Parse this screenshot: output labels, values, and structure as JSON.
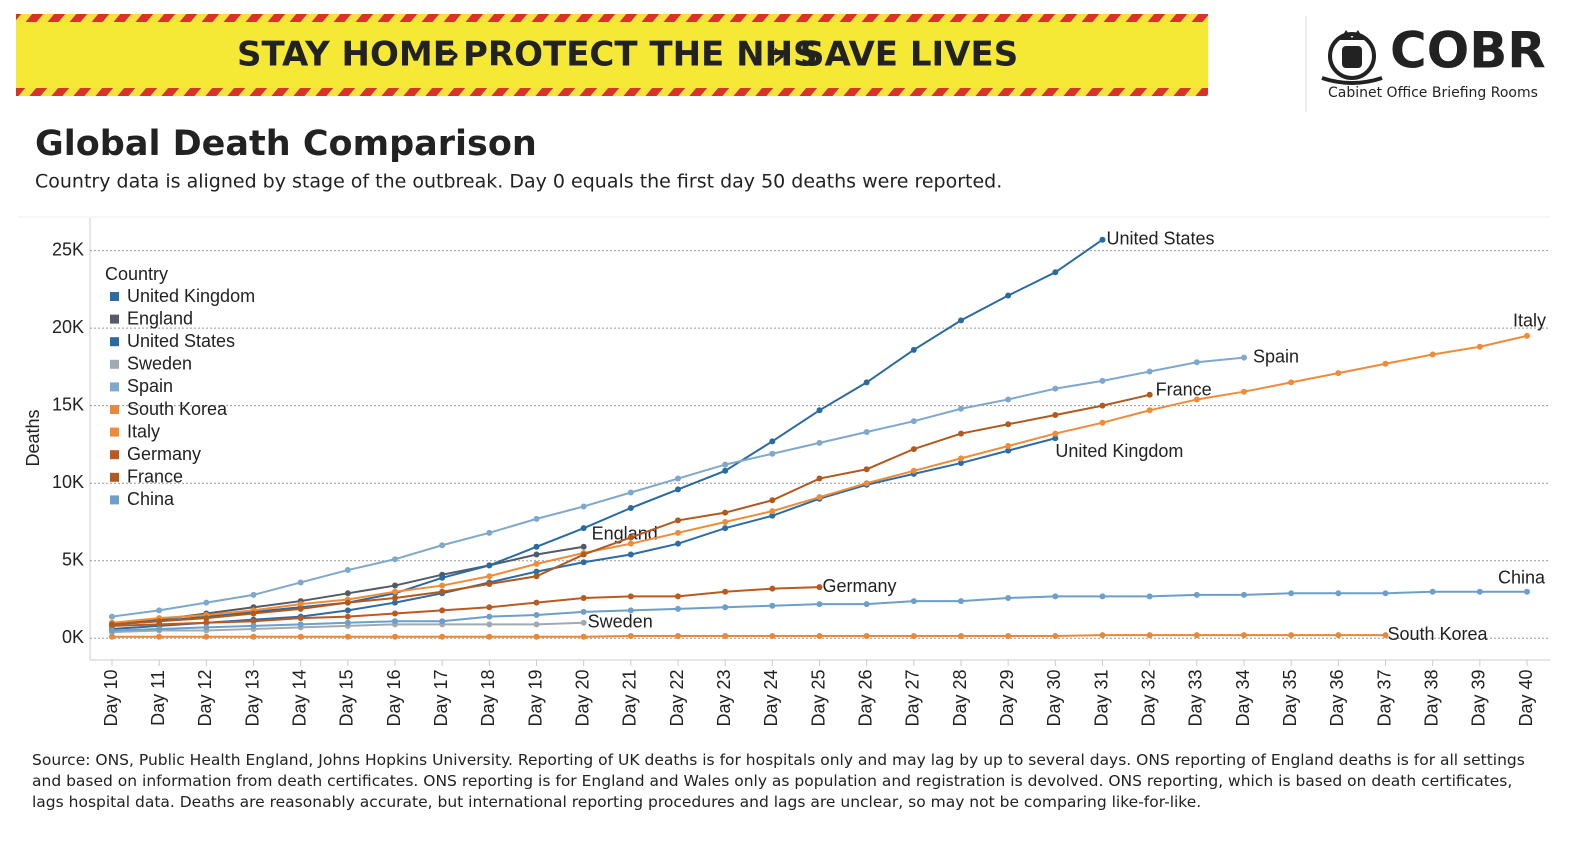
{
  "banner": {
    "items": [
      "STAY HOME",
      "PROTECT THE NHS",
      "SAVE LIVES"
    ]
  },
  "logo": {
    "name": "COBR",
    "subtitle": "Cabinet Office Briefing Rooms"
  },
  "footer": "Source: ONS, Public Health England, Johns Hopkins University. Reporting of UK deaths is for hospitals only and may lag by up to several days. ONS reporting of England deaths is for all settings and based on information from death certificates. ONS reporting is for England and Wales only as population and registration is devolved. ONS reporting, which is based on death certificates, lags hospital data. Deaths are reasonably accurate, but international reporting procedures and lags are unclear, so may not be comparing like-for-like.",
  "chart_data": {
    "type": "line",
    "title": "Global Death Comparison",
    "subtitle": "Country data is aligned by stage of the outbreak. Day 0 equals the first day 50 deaths were reported.",
    "y_label": "Deaths",
    "legend_title": "Country",
    "grid": true,
    "categories": [
      "Day 10",
      "Day 11",
      "Day 12",
      "Day 13",
      "Day 14",
      "Day 15",
      "Day 16",
      "Day 17",
      "Day 18",
      "Day 19",
      "Day 20",
      "Day 21",
      "Day 22",
      "Day 23",
      "Day 24",
      "Day 25",
      "Day 26",
      "Day 27",
      "Day 28",
      "Day 29",
      "Day 30",
      "Day 31",
      "Day 32",
      "Day 33",
      "Day 34",
      "Day 35",
      "Day 36",
      "Day 37",
      "Day 38",
      "Day 39",
      "Day 40"
    ],
    "ylim": [
      -1400,
      27100
    ],
    "yticks": [
      {
        "value": 0,
        "label": "0K"
      },
      {
        "value": 5000,
        "label": "5K"
      },
      {
        "value": 10000,
        "label": "10K"
      },
      {
        "value": 15000,
        "label": "15K"
      },
      {
        "value": 20000,
        "label": "20K"
      },
      {
        "value": 25000,
        "label": "25K"
      }
    ],
    "series": [
      {
        "name": "United Kingdom",
        "color": "#2e6ca4",
        "values": [
          600,
          800,
          1000,
          1200,
          1400,
          1800,
          2300,
          2900,
          3600,
          4300,
          4900,
          5400,
          6100,
          7100,
          7900,
          9000,
          9900,
          10600,
          11300,
          12100,
          12900,
          null,
          null,
          null,
          null,
          null,
          null,
          null,
          null,
          null,
          null
        ]
      },
      {
        "name": "England",
        "color": "#555b66",
        "values": [
          900,
          1200,
          1600,
          2000,
          2400,
          2900,
          3400,
          4100,
          4700,
          5400,
          5900,
          null,
          null,
          null,
          null,
          null,
          null,
          null,
          null,
          null,
          null,
          null,
          null,
          null,
          null,
          null,
          null,
          null,
          null,
          null,
          null
        ]
      },
      {
        "name": "United States",
        "color": "#2a6aa3",
        "values": [
          900,
          1100,
          1400,
          1700,
          2000,
          2300,
          2900,
          3900,
          4700,
          5900,
          7100,
          8400,
          9600,
          10800,
          12700,
          14700,
          16500,
          18600,
          20500,
          22100,
          23600,
          25700,
          null,
          null,
          null,
          null,
          null,
          null,
          null,
          null,
          null
        ]
      },
      {
        "name": "Sweden",
        "color": "#a3a9b3",
        "values": [
          400,
          500,
          500,
          600,
          700,
          800,
          900,
          900,
          900,
          900,
          1000,
          null,
          null,
          null,
          null,
          null,
          null,
          null,
          null,
          null,
          null,
          null,
          null,
          null,
          null,
          null,
          null,
          null,
          null,
          null,
          null
        ]
      },
      {
        "name": "Spain",
        "color": "#7ea8cc",
        "values": [
          1400,
          1800,
          2300,
          2800,
          3600,
          4400,
          5100,
          6000,
          6800,
          7700,
          8500,
          9400,
          10300,
          11200,
          11900,
          12600,
          13300,
          14000,
          14800,
          15400,
          16100,
          16600,
          17200,
          17800,
          18100,
          null,
          null,
          null,
          null,
          null,
          null
        ]
      },
      {
        "name": "South Korea",
        "color": "#e8883a",
        "values": [
          100,
          100,
          100,
          100,
          100,
          100,
          100,
          100,
          100,
          100,
          100,
          150,
          150,
          150,
          150,
          150,
          150,
          150,
          150,
          150,
          150,
          200,
          200,
          200,
          200,
          200,
          200,
          200,
          null,
          null,
          null
        ]
      },
      {
        "name": "Italy",
        "color": "#ee8c3a",
        "values": [
          1000,
          1300,
          1500,
          1800,
          2200,
          2500,
          3000,
          3400,
          4000,
          4800,
          5500,
          6100,
          6800,
          7500,
          8200,
          9100,
          10000,
          10800,
          11600,
          12400,
          13200,
          13900,
          14700,
          15400,
          15900,
          16500,
          17100,
          17700,
          18300,
          18800,
          19500
        ]
      },
      {
        "name": "Germany",
        "color": "#b85a22",
        "values": [
          800,
          900,
          1000,
          1100,
          1300,
          1400,
          1600,
          1800,
          2000,
          2300,
          2600,
          2700,
          2700,
          3000,
          3200,
          3300,
          null,
          null,
          null,
          null,
          null,
          null,
          null,
          null,
          null,
          null,
          null,
          null,
          null,
          null,
          null
        ]
      },
      {
        "name": "France",
        "color": "#b15a20",
        "values": [
          900,
          1100,
          1300,
          1600,
          1900,
          2300,
          2600,
          3000,
          3500,
          4000,
          5400,
          6500,
          7600,
          8100,
          8900,
          10300,
          10900,
          12200,
          13200,
          13800,
          14400,
          15000,
          15700,
          null,
          null,
          null,
          null,
          null,
          null,
          null,
          null
        ]
      },
      {
        "name": "China",
        "color": "#6c9fc9",
        "values": [
          500,
          600,
          700,
          800,
          900,
          1000,
          1100,
          1100,
          1400,
          1500,
          1700,
          1800,
          1900,
          2000,
          2100,
          2200,
          2200,
          2400,
          2400,
          2600,
          2700,
          2700,
          2700,
          2800,
          2800,
          2900,
          2900,
          2900,
          3000,
          3000,
          3000
        ]
      }
    ]
  }
}
